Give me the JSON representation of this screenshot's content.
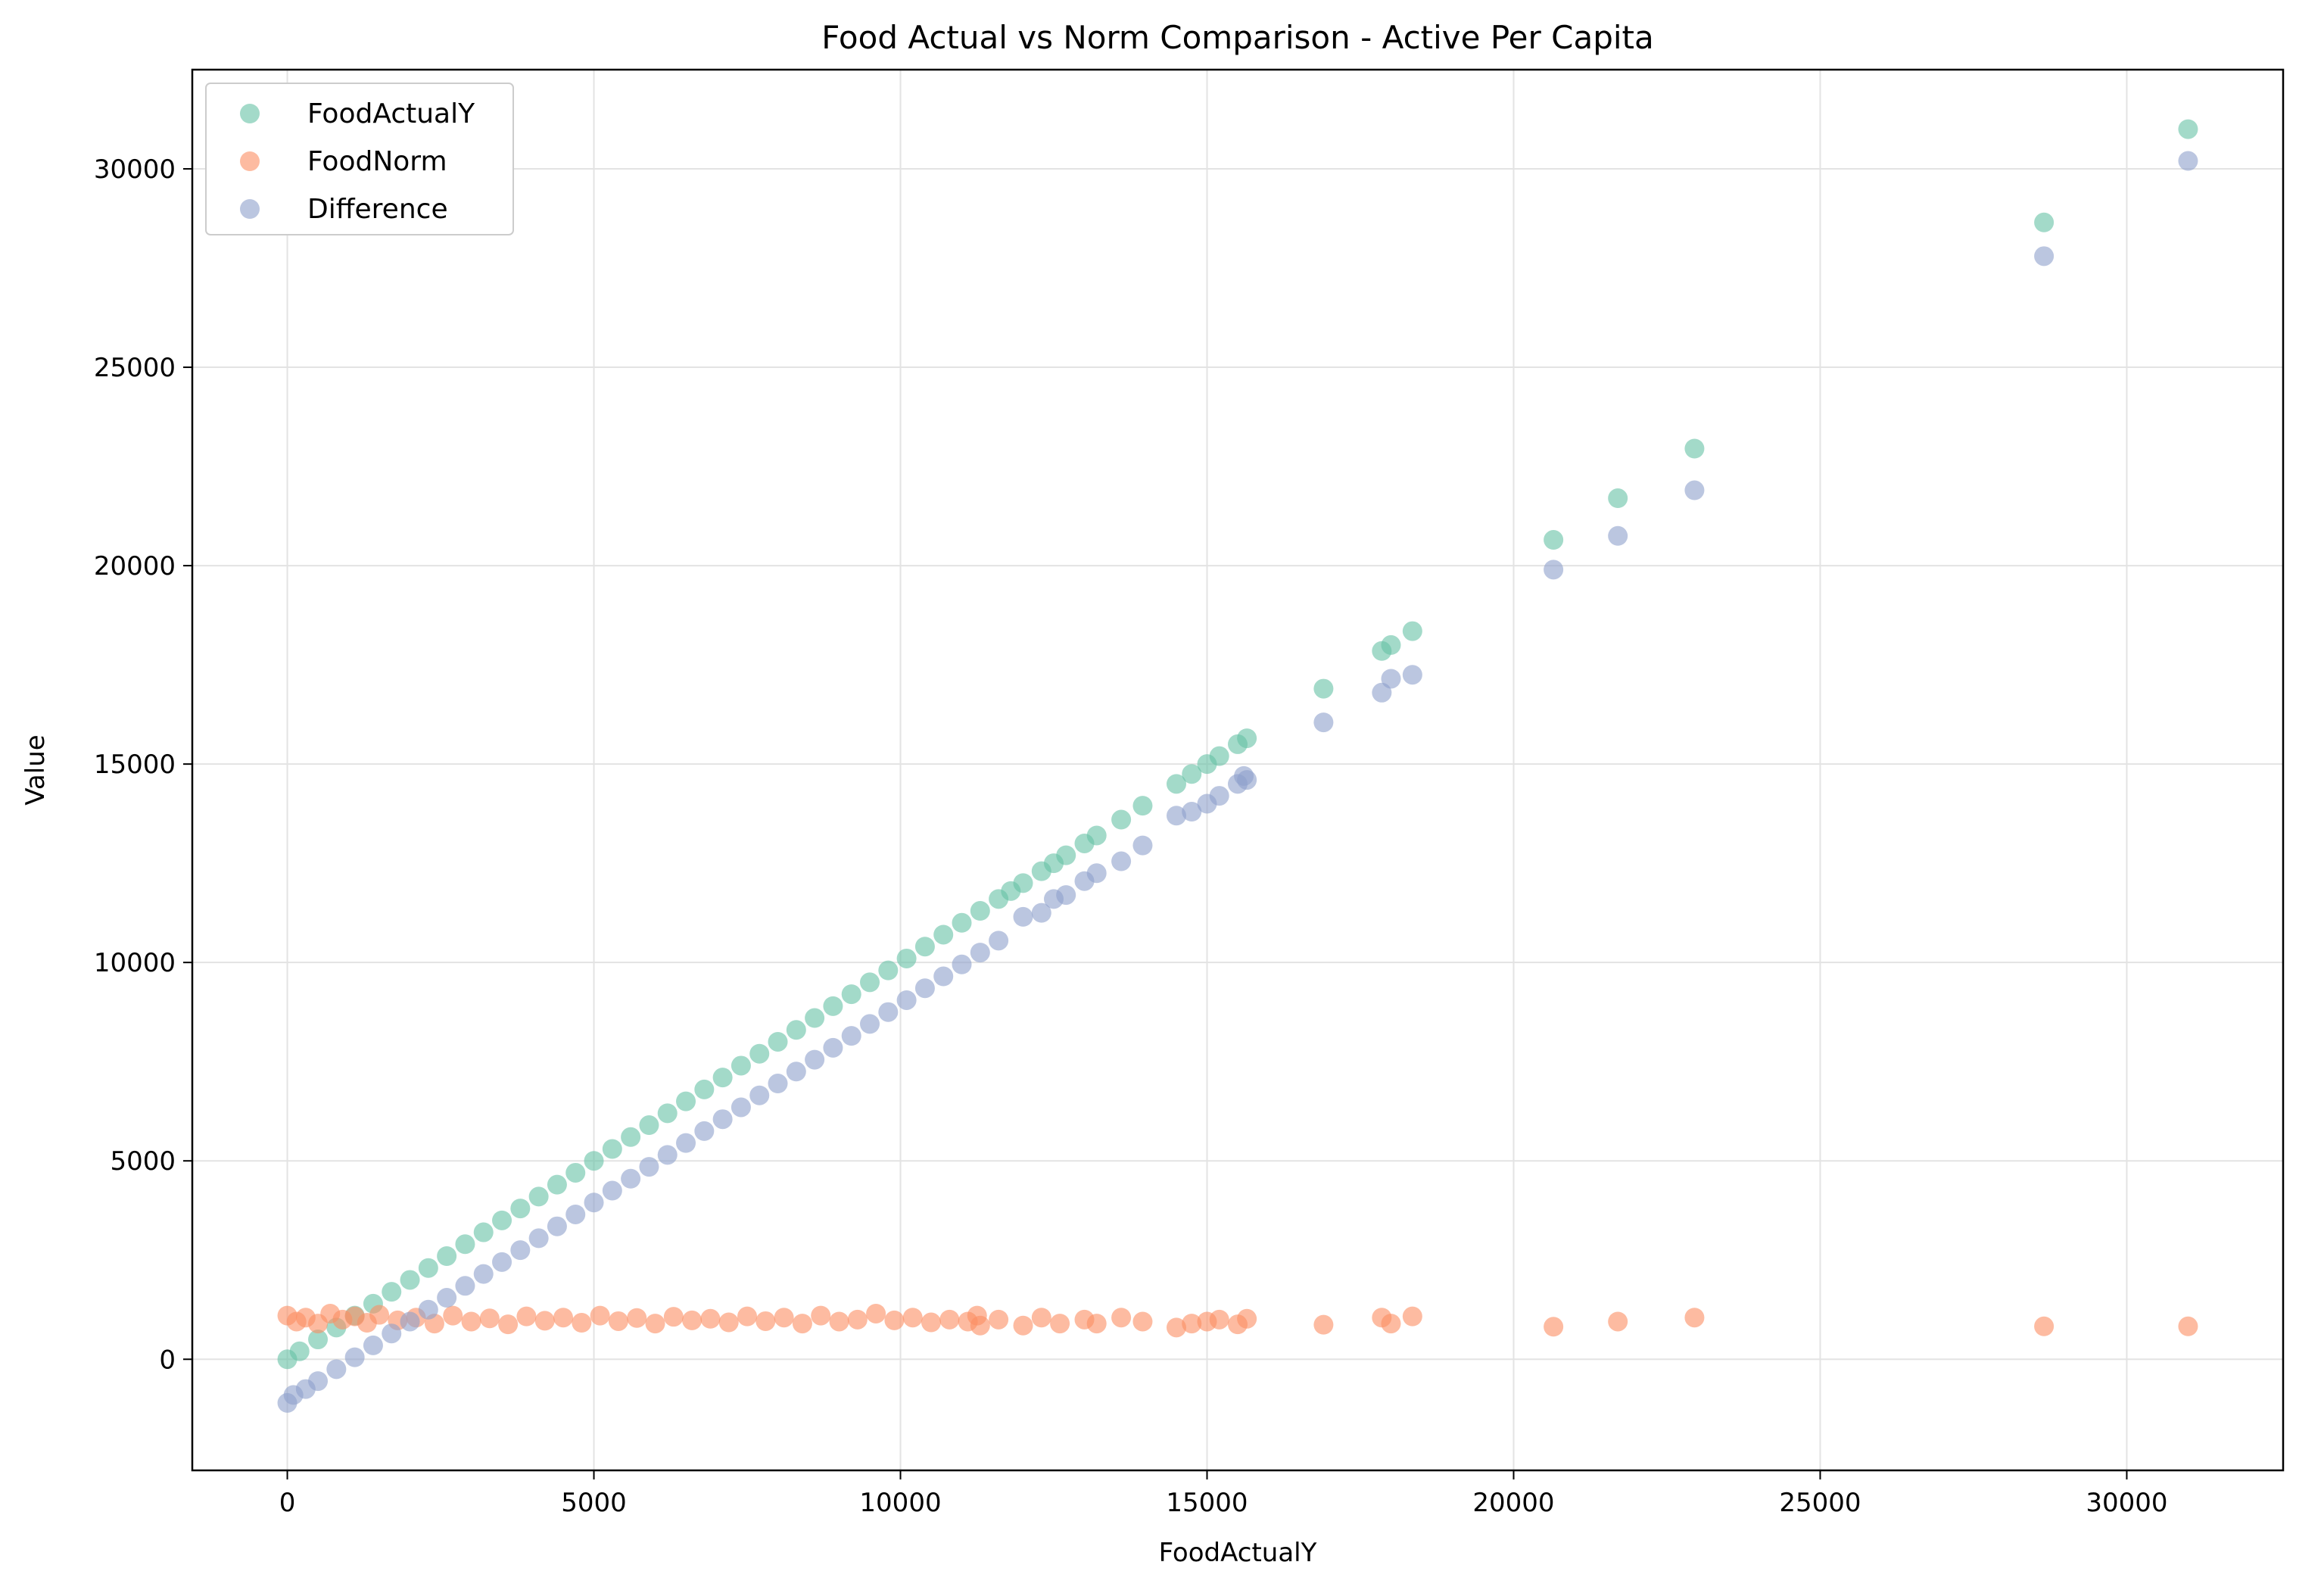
{
  "chart_data": {
    "type": "scatter",
    "title": "Food Actual vs Norm Comparison - Active Per Capita",
    "xlabel": "FoodActualY",
    "ylabel": "Value",
    "xlim": [
      -1550,
      32550
    ],
    "ylim": [
      -2800,
      32500
    ],
    "x_ticks": [
      0,
      5000,
      10000,
      15000,
      20000,
      25000,
      30000
    ],
    "x_tick_labels": [
      "0",
      "5000",
      "10000",
      "15000",
      "20000",
      "25000",
      "30000"
    ],
    "y_ticks": [
      0,
      5000,
      10000,
      15000,
      20000,
      25000,
      30000
    ],
    "y_tick_labels": [
      "0",
      "5000",
      "10000",
      "15000",
      "20000",
      "25000",
      "30000"
    ],
    "grid": true,
    "legend_position": "top-left",
    "series": [
      {
        "name": "FoodActualY",
        "color": "#66c2a5",
        "points": [
          [
            0,
            0
          ],
          [
            200,
            200
          ],
          [
            500,
            500
          ],
          [
            800,
            800
          ],
          [
            1100,
            1100
          ],
          [
            1400,
            1400
          ],
          [
            1700,
            1700
          ],
          [
            2000,
            2000
          ],
          [
            2300,
            2300
          ],
          [
            2600,
            2600
          ],
          [
            2900,
            2900
          ],
          [
            3200,
            3200
          ],
          [
            3500,
            3500
          ],
          [
            3800,
            3800
          ],
          [
            4100,
            4100
          ],
          [
            4400,
            4400
          ],
          [
            4700,
            4700
          ],
          [
            5000,
            5000
          ],
          [
            5300,
            5300
          ],
          [
            5600,
            5600
          ],
          [
            5900,
            5900
          ],
          [
            6200,
            6200
          ],
          [
            6500,
            6500
          ],
          [
            6800,
            6800
          ],
          [
            7100,
            7100
          ],
          [
            7400,
            7400
          ],
          [
            7700,
            7700
          ],
          [
            8000,
            8000
          ],
          [
            8300,
            8300
          ],
          [
            8600,
            8600
          ],
          [
            8900,
            8900
          ],
          [
            9200,
            9200
          ],
          [
            9500,
            9500
          ],
          [
            9800,
            9800
          ],
          [
            10100,
            10100
          ],
          [
            10400,
            10400
          ],
          [
            10700,
            10700
          ],
          [
            11000,
            11000
          ],
          [
            11300,
            11300
          ],
          [
            11600,
            11600
          ],
          [
            11800,
            11800
          ],
          [
            12000,
            12000
          ],
          [
            12300,
            12300
          ],
          [
            12500,
            12500
          ],
          [
            12700,
            12700
          ],
          [
            13000,
            13000
          ],
          [
            13200,
            13200
          ],
          [
            13600,
            13600
          ],
          [
            13950,
            13950
          ],
          [
            14500,
            14500
          ],
          [
            14750,
            14750
          ],
          [
            15000,
            15000
          ],
          [
            15200,
            15200
          ],
          [
            15500,
            15500
          ],
          [
            15650,
            15650
          ],
          [
            16900,
            16900
          ],
          [
            17850,
            17850
          ],
          [
            18000,
            18000
          ],
          [
            18350,
            18350
          ],
          [
            20650,
            20650
          ],
          [
            21700,
            21700
          ],
          [
            22950,
            22950
          ],
          [
            28650,
            28650
          ],
          [
            31000,
            31000
          ]
        ]
      },
      {
        "name": "FoodNorm",
        "color": "#fc8d62",
        "points": [
          [
            0,
            1100
          ],
          [
            150,
            950
          ],
          [
            300,
            1050
          ],
          [
            500,
            900
          ],
          [
            700,
            1150
          ],
          [
            900,
            1000
          ],
          [
            1100,
            1080
          ],
          [
            1300,
            920
          ],
          [
            1500,
            1120
          ],
          [
            1800,
            980
          ],
          [
            2100,
            1050
          ],
          [
            2400,
            900
          ],
          [
            2700,
            1100
          ],
          [
            3000,
            950
          ],
          [
            3300,
            1030
          ],
          [
            3600,
            880
          ],
          [
            3900,
            1080
          ],
          [
            4200,
            970
          ],
          [
            4500,
            1050
          ],
          [
            4800,
            920
          ],
          [
            5100,
            1100
          ],
          [
            5400,
            960
          ],
          [
            5700,
            1040
          ],
          [
            6000,
            900
          ],
          [
            6300,
            1070
          ],
          [
            6600,
            980
          ],
          [
            6900,
            1020
          ],
          [
            7200,
            930
          ],
          [
            7500,
            1080
          ],
          [
            7800,
            960
          ],
          [
            8100,
            1050
          ],
          [
            8400,
            900
          ],
          [
            8700,
            1100
          ],
          [
            9000,
            950
          ],
          [
            9300,
            1000
          ],
          [
            9600,
            1150
          ],
          [
            9900,
            980
          ],
          [
            10200,
            1050
          ],
          [
            10500,
            930
          ],
          [
            10800,
            1000
          ],
          [
            11100,
            950
          ],
          [
            11250,
            1100
          ],
          [
            11300,
            850
          ],
          [
            11600,
            1000
          ],
          [
            12000,
            850
          ],
          [
            12300,
            1050
          ],
          [
            12600,
            900
          ],
          [
            13000,
            1000
          ],
          [
            13200,
            900
          ],
          [
            13600,
            1050
          ],
          [
            13950,
            950
          ],
          [
            14500,
            800
          ],
          [
            14750,
            900
          ],
          [
            15000,
            950
          ],
          [
            15200,
            1000
          ],
          [
            15500,
            880
          ],
          [
            15650,
            1020
          ],
          [
            16900,
            870
          ],
          [
            17850,
            1050
          ],
          [
            18000,
            900
          ],
          [
            18350,
            1080
          ],
          [
            20650,
            820
          ],
          [
            21700,
            950
          ],
          [
            22950,
            1050
          ],
          [
            28650,
            830
          ],
          [
            31000,
            830
          ]
        ]
      },
      {
        "name": "Difference",
        "color": "#8da0cb",
        "points": [
          [
            0,
            -1100
          ],
          [
            100,
            -900
          ],
          [
            300,
            -750
          ],
          [
            500,
            -550
          ],
          [
            800,
            -250
          ],
          [
            1100,
            50
          ],
          [
            1400,
            350
          ],
          [
            1700,
            650
          ],
          [
            2000,
            950
          ],
          [
            2300,
            1250
          ],
          [
            2600,
            1550
          ],
          [
            2900,
            1850
          ],
          [
            3200,
            2150
          ],
          [
            3500,
            2450
          ],
          [
            3800,
            2750
          ],
          [
            4100,
            3050
          ],
          [
            4400,
            3350
          ],
          [
            4700,
            3650
          ],
          [
            5000,
            3950
          ],
          [
            5300,
            4250
          ],
          [
            5600,
            4550
          ],
          [
            5900,
            4850
          ],
          [
            6200,
            5150
          ],
          [
            6500,
            5450
          ],
          [
            6800,
            5750
          ],
          [
            7100,
            6050
          ],
          [
            7400,
            6350
          ],
          [
            7700,
            6650
          ],
          [
            8000,
            6950
          ],
          [
            8300,
            7250
          ],
          [
            8600,
            7550
          ],
          [
            8900,
            7850
          ],
          [
            9200,
            8150
          ],
          [
            9500,
            8450
          ],
          [
            9800,
            8750
          ],
          [
            10100,
            9050
          ],
          [
            10400,
            9350
          ],
          [
            10700,
            9650
          ],
          [
            11000,
            9950
          ],
          [
            11300,
            10250
          ],
          [
            11600,
            10550
          ],
          [
            12000,
            11150
          ],
          [
            12300,
            11250
          ],
          [
            12500,
            11600
          ],
          [
            12700,
            11700
          ],
          [
            13000,
            12050
          ],
          [
            13200,
            12250
          ],
          [
            13600,
            12550
          ],
          [
            13950,
            12950
          ],
          [
            14500,
            13700
          ],
          [
            14750,
            13800
          ],
          [
            15000,
            14000
          ],
          [
            15200,
            14200
          ],
          [
            15500,
            14500
          ],
          [
            15600,
            14700
          ],
          [
            15650,
            14600
          ],
          [
            16900,
            16050
          ],
          [
            17850,
            16800
          ],
          [
            18000,
            17150
          ],
          [
            18350,
            17250
          ],
          [
            20650,
            19900
          ],
          [
            21700,
            20750
          ],
          [
            22950,
            21900
          ],
          [
            28650,
            27800
          ],
          [
            31000,
            30200
          ]
        ]
      }
    ]
  }
}
